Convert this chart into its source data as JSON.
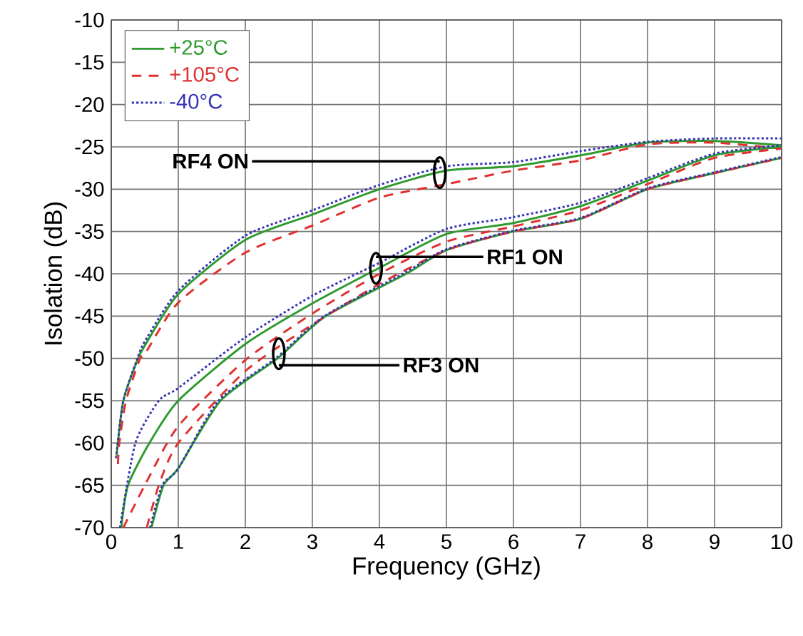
{
  "chart_data": {
    "type": "line",
    "xlabel": "Frequency (GHz)",
    "ylabel": "Isolation (dB)",
    "xlim": [
      0,
      10
    ],
    "ylim": [
      -70,
      -10
    ],
    "xticks": [
      0,
      1,
      2,
      3,
      4,
      5,
      6,
      7,
      8,
      9,
      10
    ],
    "yticks": [
      -70,
      -65,
      -60,
      -55,
      -50,
      -45,
      -40,
      -35,
      -30,
      -25,
      -20,
      -15,
      -10
    ],
    "grid": true,
    "legend": "top left",
    "series": [
      {
        "name": "+25°C",
        "color": "#2e9a2e",
        "line_style": "solid",
        "x": [
          0.08,
          0.18,
          0.4,
          0.5,
          1,
          2,
          3,
          4,
          5,
          6,
          7,
          8,
          9,
          10
        ],
        "values": [
          -61.5,
          -55,
          -50,
          -48.5,
          -42.4,
          -36,
          -33,
          -30,
          -27.8,
          -27.3,
          -26,
          -24.5,
          -24.3,
          -24.8
        ]
      },
      {
        "name": "+105°C",
        "color": "#e03030",
        "line_style": "dashed",
        "x": [
          0.1,
          0.12,
          0.22,
          0.43,
          0.5,
          1,
          2,
          3,
          4,
          5,
          6,
          7,
          8,
          9,
          10
        ],
        "values": [
          -62.5,
          -60,
          -55,
          -50,
          -49.5,
          -43.4,
          -37.5,
          -34.3,
          -31,
          -29.4,
          -27.8,
          -26.6,
          -24.7,
          -24.5,
          -25.2
        ]
      },
      {
        "name": "-40°C",
        "color": "#3535b5",
        "line_style": "dotted",
        "x": [
          0.07,
          0.18,
          0.39,
          0.5,
          1,
          2,
          3,
          4,
          5,
          6,
          7,
          8,
          9,
          10
        ],
        "values": [
          -61.8,
          -55,
          -50,
          -48,
          -42,
          -35.5,
          -32.5,
          -29.5,
          -27.3,
          -26.8,
          -25.5,
          -24.4,
          -24,
          -24
        ]
      },
      {
        "color": "#2e9a2e",
        "line_style": "solid",
        "x": [
          0.15,
          0.25,
          0.57,
          1,
          2,
          3,
          4,
          5,
          6,
          7,
          8,
          9,
          10
        ],
        "values": [
          -70,
          -65,
          -60,
          -55,
          -48.3,
          -43.5,
          -39.3,
          -35.3,
          -34,
          -32,
          -29,
          -26,
          -25
        ]
      },
      {
        "color": "#e03030",
        "line_style": "dashed",
        "x": [
          0.18,
          0.5,
          1,
          2,
          3,
          4,
          5,
          6,
          7,
          8,
          9,
          10
        ],
        "values": [
          -70,
          -65,
          -58,
          -50.2,
          -44.7,
          -40,
          -36.2,
          -34.4,
          -32.5,
          -29.4,
          -26.3,
          -25.2
        ]
      },
      {
        "color": "#3535b5",
        "line_style": "dotted",
        "x": [
          0.13,
          0.36,
          0.71,
          1,
          2,
          3,
          4,
          5,
          6,
          7,
          8,
          9,
          10
        ],
        "values": [
          -70,
          -60,
          -55,
          -53.5,
          -47.5,
          -42.6,
          -38.7,
          -34.7,
          -33.3,
          -31.6,
          -28.7,
          -25.8,
          -24.8
        ]
      },
      {
        "color": "#2e9a2e",
        "line_style": "solid",
        "x": [
          0.6,
          0.78,
          1,
          1.63,
          2.48,
          3.2,
          4.4,
          5,
          6,
          7,
          8,
          9,
          10
        ],
        "values": [
          -70,
          -65,
          -63,
          -55,
          -50,
          -45,
          -40,
          -37.2,
          -35,
          -33.5,
          -30,
          -28.1,
          -26.3
        ]
      },
      {
        "color": "#e03030",
        "line_style": "dashed",
        "x": [
          0.53,
          0.71,
          1,
          2,
          3,
          4,
          5,
          6,
          7,
          8,
          9,
          10
        ],
        "values": [
          -70,
          -65,
          -60,
          -51.5,
          -46,
          -41.2,
          -37.2,
          -35,
          -33.5,
          -30,
          -28.1,
          -26.3
        ]
      },
      {
        "color": "#3535b5",
        "line_style": "dotted",
        "x": [
          0.58,
          0.76,
          1,
          1.6,
          2.45,
          3.18,
          4.35,
          5,
          6,
          7,
          8,
          9,
          10
        ],
        "values": [
          -70,
          -65,
          -63,
          -55,
          -50,
          -45,
          -40,
          -37.1,
          -34.9,
          -33.4,
          -29.9,
          -28,
          -26.2
        ]
      }
    ],
    "annotations": [
      {
        "text": "RF4 ON",
        "x": 4.9,
        "y": -26.7
      },
      {
        "text": "RF1 ON",
        "x": 3.95,
        "y": -38
      },
      {
        "text": "RF3 ON",
        "x": 2.5,
        "y": -50.8
      }
    ]
  }
}
